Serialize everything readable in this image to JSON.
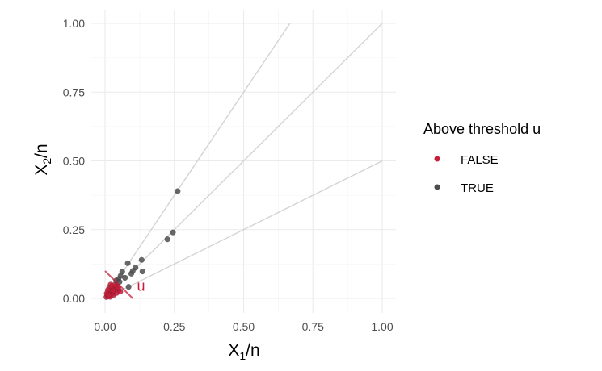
{
  "chart_data": {
    "type": "scatter",
    "xlabel": {
      "main": "X",
      "sub": "1",
      "rest": "/n"
    },
    "ylabel": {
      "main": "X",
      "sub": "2",
      "rest": "/n"
    },
    "xlim": [
      0,
      1
    ],
    "ylim": [
      0,
      1
    ],
    "x_ticks": [
      0,
      0.25,
      0.5,
      0.75,
      1
    ],
    "y_ticks": [
      0,
      0.25,
      0.5,
      0.75,
      1
    ],
    "x_tick_labels": [
      "0.00",
      "0.25",
      "0.50",
      "0.75",
      "1.00"
    ],
    "y_tick_labels": [
      "0.00",
      "0.25",
      "0.50",
      "0.75",
      "1.00"
    ],
    "grid": true,
    "reference_lines": [
      {
        "x": [
          0,
          0.667
        ],
        "y": [
          0,
          1.0
        ]
      },
      {
        "x": [
          0,
          1.0
        ],
        "y": [
          0,
          1.0
        ]
      },
      {
        "x": [
          0,
          1.0
        ],
        "y": [
          0,
          0.5
        ]
      }
    ],
    "threshold": {
      "label": "u",
      "x": [
        0.0,
        0.1
      ],
      "y": [
        0.1,
        0.0
      ],
      "label_x": 0.115,
      "label_y": 0.045
    },
    "legend": {
      "title": "Above threshold u",
      "placement": "right"
    },
    "series": [
      {
        "name": "FALSE",
        "color": "#c41e3a",
        "points": [
          [
            0.005,
            0.005
          ],
          [
            0.01,
            0.008
          ],
          [
            0.008,
            0.015
          ],
          [
            0.015,
            0.01
          ],
          [
            0.012,
            0.02
          ],
          [
            0.02,
            0.015
          ],
          [
            0.018,
            0.025
          ],
          [
            0.025,
            0.02
          ],
          [
            0.022,
            0.03
          ],
          [
            0.03,
            0.025
          ],
          [
            0.028,
            0.035
          ],
          [
            0.035,
            0.03
          ],
          [
            0.015,
            0.04
          ],
          [
            0.04,
            0.045
          ],
          [
            0.032,
            0.018
          ],
          [
            0.045,
            0.035
          ],
          [
            0.038,
            0.042
          ],
          [
            0.05,
            0.03
          ],
          [
            0.02,
            0.05
          ],
          [
            0.01,
            0.03
          ],
          [
            0.03,
            0.012
          ],
          [
            0.025,
            0.045
          ],
          [
            0.042,
            0.02
          ],
          [
            0.006,
            0.018
          ],
          [
            0.018,
            0.006
          ],
          [
            0.035,
            0.05
          ],
          [
            0.048,
            0.042
          ],
          [
            0.055,
            0.025
          ],
          [
            0.012,
            0.012
          ],
          [
            0.028,
            0.028
          ]
        ]
      },
      {
        "name": "TRUE",
        "color": "#4d4d4d",
        "points": [
          [
            0.262,
            0.39
          ],
          [
            0.245,
            0.24
          ],
          [
            0.225,
            0.215
          ],
          [
            0.132,
            0.14
          ],
          [
            0.082,
            0.128
          ],
          [
            0.11,
            0.112
          ],
          [
            0.135,
            0.098
          ],
          [
            0.095,
            0.09
          ],
          [
            0.062,
            0.098
          ],
          [
            0.056,
            0.082
          ],
          [
            0.072,
            0.075
          ],
          [
            0.048,
            0.07
          ],
          [
            0.052,
            0.06
          ],
          [
            0.04,
            0.065
          ],
          [
            0.085,
            0.042
          ],
          [
            0.1,
            0.1
          ]
        ]
      }
    ]
  }
}
